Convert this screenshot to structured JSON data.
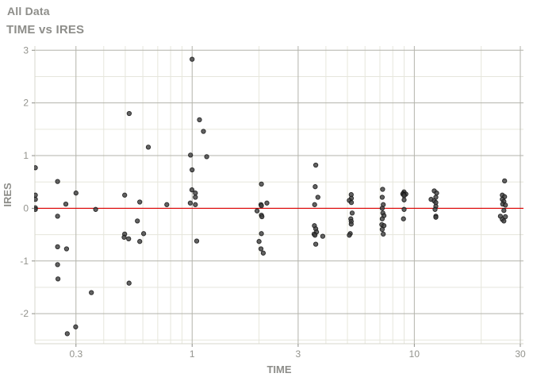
{
  "header": {
    "title": "All Data",
    "subtitle": "TIME vs IRES"
  },
  "chart_data": {
    "type": "scatter",
    "title": "All Data",
    "subtitle": "TIME vs IRES",
    "xlabel": "TIME",
    "ylabel": "IRES",
    "x_scale": "log",
    "x_range": [
      0.196,
      31
    ],
    "y_range": [
      -2.57,
      3.08
    ],
    "x_ticks": [
      0.3,
      1,
      3,
      10,
      30
    ],
    "x_tick_labels": [
      "0.3",
      "1",
      "3",
      "10",
      "30"
    ],
    "x_minor_ticks": [
      0.4,
      0.5,
      0.6,
      0.7,
      0.8,
      0.9,
      2,
      4,
      5,
      6,
      7,
      8,
      9,
      20
    ],
    "y_ticks": [
      -2,
      -1,
      0,
      1,
      2,
      3
    ],
    "y_tick_labels": [
      "-2",
      "-1",
      "0",
      "1",
      "2",
      "3"
    ],
    "y_minor_ticks": [
      -2.5,
      -1.5,
      -0.5,
      0.5,
      1.5,
      2.5
    ],
    "grid": true,
    "legend": "none",
    "ref_line": {
      "y": 0,
      "color": "#dd0000"
    },
    "colors": {
      "point_fill": "#3f3f3f",
      "point_stroke": "#141414",
      "grid_major": "#b3b3ab",
      "grid_minor": "#e6e6dc",
      "axis_line": "#d7d7cc",
      "tick_mark": "#8e8e88",
      "axis_text": "#93938d",
      "axis_title": "#8d8d89",
      "title_text": "#8d8d89",
      "background": "#ffffff"
    },
    "points": [
      [
        0.197,
        0.77
      ],
      [
        0.197,
        0.25
      ],
      [
        0.197,
        0.17
      ],
      [
        0.197,
        0.01
      ],
      [
        0.197,
        -0.02
      ],
      [
        0.248,
        0.51
      ],
      [
        0.248,
        -0.15
      ],
      [
        0.248,
        -0.73
      ],
      [
        0.248,
        -1.07
      ],
      [
        0.249,
        -1.34
      ],
      [
        0.27,
        0.08
      ],
      [
        0.272,
        -0.77
      ],
      [
        0.274,
        -2.38
      ],
      [
        0.3,
        0.29
      ],
      [
        0.299,
        -2.25
      ],
      [
        0.352,
        -1.6
      ],
      [
        0.368,
        -0.02
      ],
      [
        0.497,
        0.25
      ],
      [
        0.497,
        -0.49
      ],
      [
        0.494,
        -0.55
      ],
      [
        0.521,
        1.8
      ],
      [
        0.518,
        -0.58
      ],
      [
        0.52,
        -1.42
      ],
      [
        0.567,
        -0.24
      ],
      [
        0.581,
        0.12
      ],
      [
        0.581,
        -0.63
      ],
      [
        0.605,
        -0.48
      ],
      [
        0.635,
        1.16
      ],
      [
        0.769,
        0.07
      ],
      [
        1.0,
        2.83
      ],
      [
        0.983,
        1.01
      ],
      [
        1.163,
        0.98
      ],
      [
        1.079,
        1.68
      ],
      [
        1.124,
        1.46
      ],
      [
        1.0,
        0.73
      ],
      [
        0.998,
        0.35
      ],
      [
        1.034,
        0.29
      ],
      [
        1.034,
        0.21
      ],
      [
        0.981,
        0.1
      ],
      [
        1.034,
        0.07
      ],
      [
        1.048,
        -0.62
      ],
      [
        2.05,
        0.46
      ],
      [
        2.17,
        0.1
      ],
      [
        2.04,
        0.07
      ],
      [
        2.05,
        0.05
      ],
      [
        1.96,
        -0.05
      ],
      [
        2.05,
        -0.13
      ],
      [
        2.06,
        -0.16
      ],
      [
        2.05,
        -0.48
      ],
      [
        2.0,
        -0.63
      ],
      [
        2.04,
        -0.77
      ],
      [
        2.09,
        -0.85
      ],
      [
        3.6,
        0.82
      ],
      [
        3.58,
        0.41
      ],
      [
        3.68,
        0.21
      ],
      [
        3.56,
        0.07
      ],
      [
        3.55,
        -0.33
      ],
      [
        3.6,
        -0.39
      ],
      [
        3.63,
        -0.45
      ],
      [
        3.54,
        -0.49
      ],
      [
        3.57,
        -0.51
      ],
      [
        3.87,
        -0.53
      ],
      [
        3.6,
        -0.68
      ],
      [
        5.2,
        0.26
      ],
      [
        5.21,
        0.19
      ],
      [
        5.1,
        0.15
      ],
      [
        5.21,
        0.11
      ],
      [
        5.25,
        -0.09
      ],
      [
        5.18,
        -0.2
      ],
      [
        5.2,
        -0.25
      ],
      [
        5.2,
        -0.3
      ],
      [
        5.15,
        -0.48
      ],
      [
        5.1,
        -0.51
      ],
      [
        7.2,
        0.36
      ],
      [
        7.17,
        0.21
      ],
      [
        7.25,
        0.07
      ],
      [
        7.17,
        0.0
      ],
      [
        7.22,
        -0.09
      ],
      [
        7.3,
        -0.14
      ],
      [
        7.17,
        -0.2
      ],
      [
        7.14,
        -0.31
      ],
      [
        7.3,
        -0.33
      ],
      [
        7.17,
        -0.4
      ],
      [
        7.25,
        -0.49
      ],
      [
        8.99,
        0.31
      ],
      [
        8.9,
        0.28
      ],
      [
        9.16,
        0.27
      ],
      [
        8.88,
        0.27
      ],
      [
        9.0,
        0.26
      ],
      [
        9.0,
        0.24
      ],
      [
        9.0,
        0.16
      ],
      [
        9.0,
        -0.02
      ],
      [
        8.94,
        -0.2
      ],
      [
        12.3,
        0.33
      ],
      [
        12.6,
        0.29
      ],
      [
        12.5,
        0.21
      ],
      [
        11.9,
        0.17
      ],
      [
        12.3,
        0.14
      ],
      [
        12.5,
        0.11
      ],
      [
        12.5,
        0.04
      ],
      [
        12.4,
        -0.02
      ],
      [
        12.5,
        -0.15
      ],
      [
        12.5,
        -0.17
      ],
      [
        25.5,
        0.52
      ],
      [
        24.9,
        0.25
      ],
      [
        25.5,
        0.22
      ],
      [
        24.9,
        0.17
      ],
      [
        25.3,
        0.13
      ],
      [
        25.0,
        0.08
      ],
      [
        25.7,
        0.06
      ],
      [
        25.3,
        -0.04
      ],
      [
        24.4,
        -0.15
      ],
      [
        25.7,
        -0.16
      ],
      [
        24.9,
        -0.21
      ],
      [
        25.3,
        -0.24
      ]
    ]
  }
}
